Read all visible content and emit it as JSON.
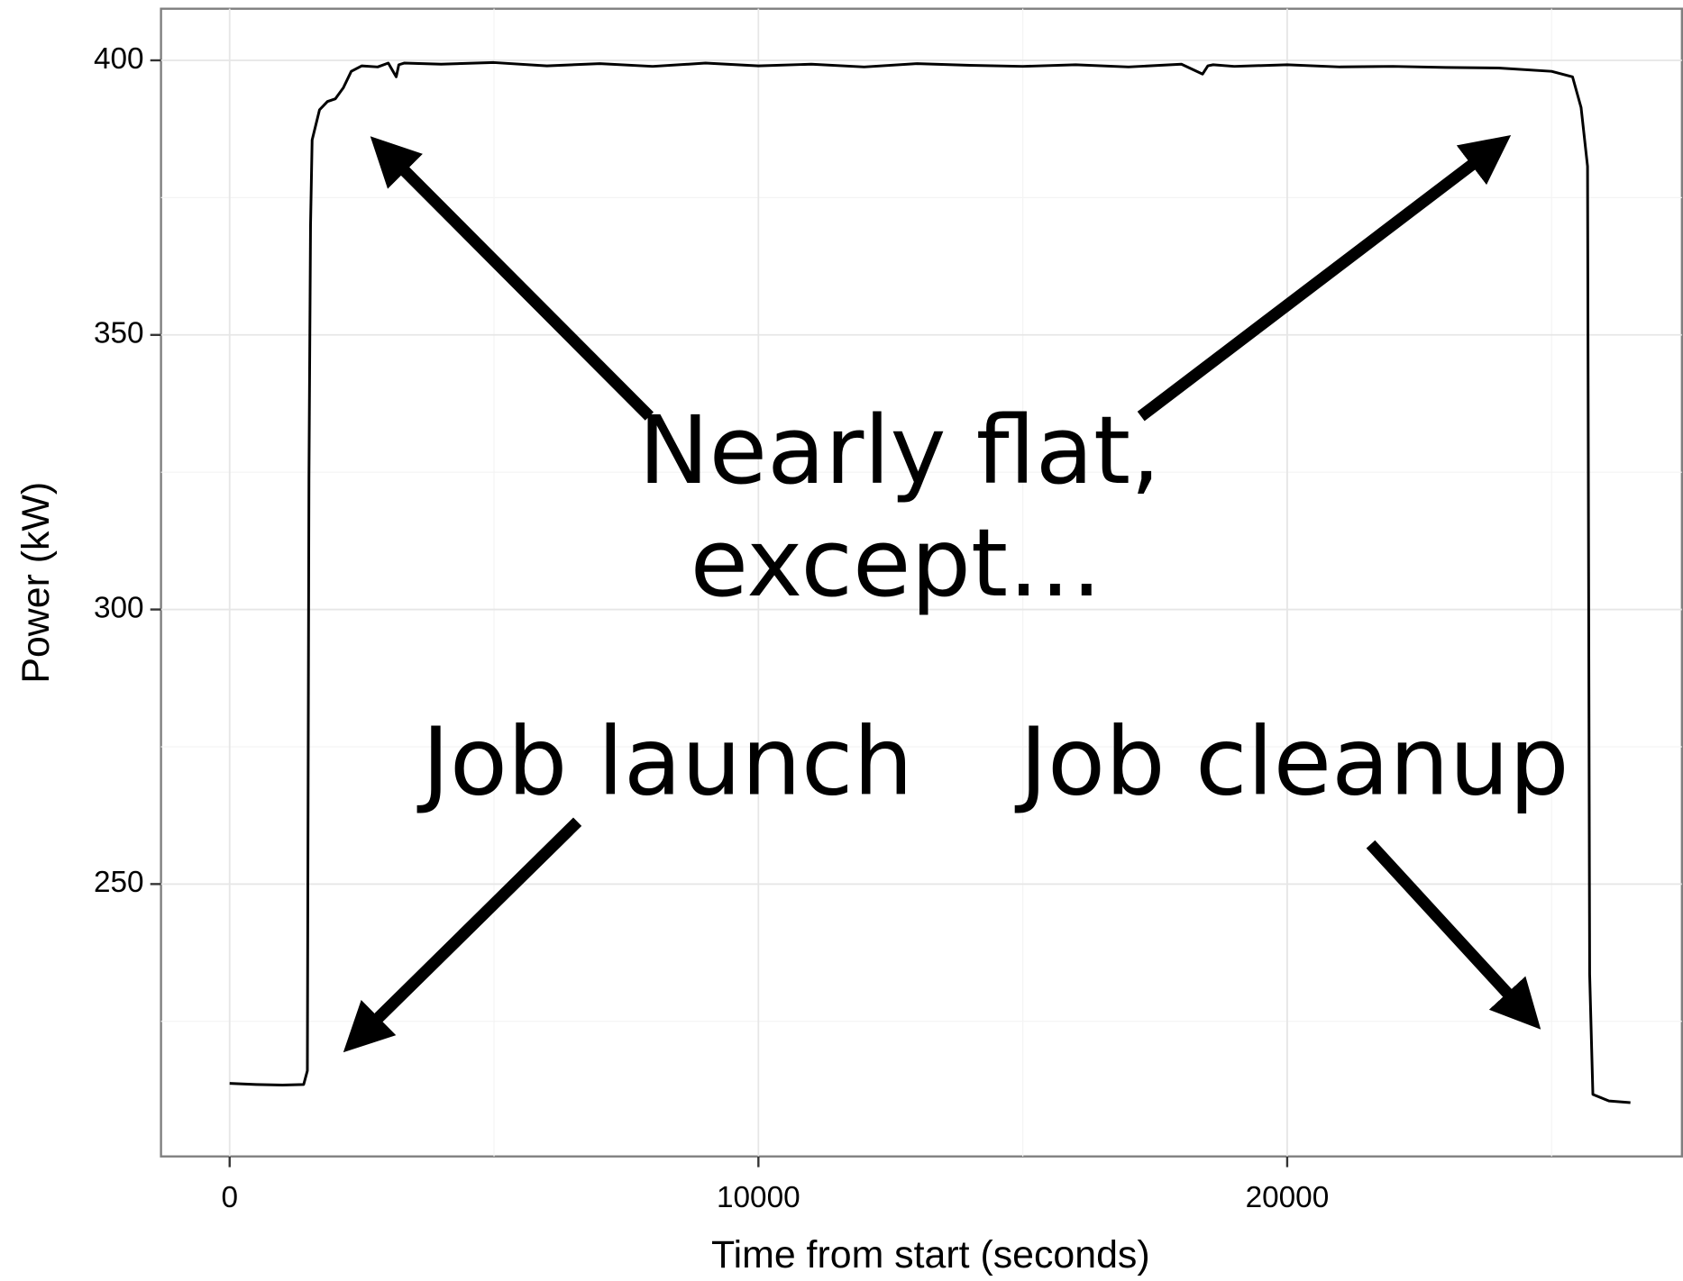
{
  "chart_data": {
    "type": "line",
    "x_label": "Time from start (seconds)",
    "y_label": "Power (kW)",
    "annotations": [
      "Nearly flat,",
      "except…",
      "Job launch",
      "Job cleanup"
    ],
    "xlim": [
      -1298,
      27465
    ],
    "ylim": [
      200.4,
      409.4
    ],
    "xticks": [
      0,
      10000,
      20000
    ],
    "yticks": [
      250,
      300,
      350,
      400
    ],
    "xminor": [
      5000,
      15000,
      25000
    ],
    "yminor": [
      225,
      275,
      325,
      375
    ],
    "grid": true,
    "series": [
      {
        "name": "Power",
        "color": "#000000",
        "x": [
          0,
          500,
          1000,
          1400,
          1470,
          1500,
          1530,
          1560,
          1700,
          1850,
          2000,
          2150,
          2300,
          2500,
          2800,
          3000,
          3150,
          3200,
          3300,
          4000,
          5000,
          6000,
          7000,
          8000,
          9000,
          10000,
          11000,
          12000,
          13000,
          14000,
          15000,
          16000,
          17000,
          18000,
          18400,
          18500,
          18600,
          19000,
          20000,
          21000,
          22000,
          23000,
          24000,
          25000,
          25396,
          25558,
          25680,
          25720,
          25781,
          26085,
          26491
        ],
        "values": [
          213.7,
          213.5,
          213.4,
          213.5,
          216,
          324,
          370,
          385.5,
          391,
          392.5,
          393,
          395,
          398,
          399,
          398.8,
          399.5,
          397,
          399.2,
          399.5,
          399.3,
          399.6,
          399,
          399.4,
          398.9,
          399.5,
          399,
          399.3,
          398.8,
          399.4,
          399.1,
          398.9,
          399.2,
          398.8,
          399.3,
          397.5,
          399,
          399.2,
          398.9,
          399.2,
          398.8,
          398.9,
          398.7,
          398.6,
          398,
          397,
          391.4,
          380.7,
          233.6,
          211.7,
          210.5,
          210.2
        ]
      }
    ]
  }
}
